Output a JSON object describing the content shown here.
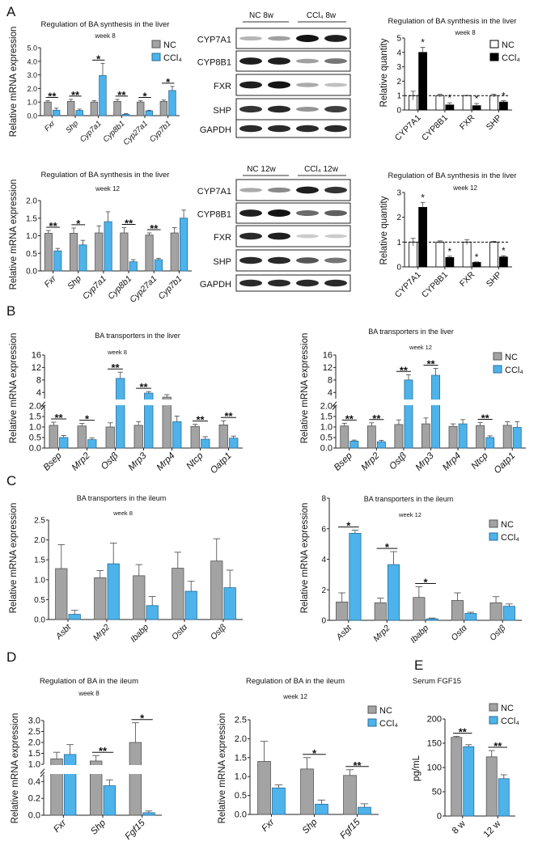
{
  "panel_letters": [
    "A",
    "B",
    "C",
    "D",
    "E"
  ],
  "legend": {
    "nc": "NC",
    "ccl4": "CCl₄"
  },
  "colors": {
    "nc_fill": "#a3a3a3",
    "nc_stroke": "#555555",
    "ccl4_fill": "#4db3ea",
    "ccl4_stroke": "#2a6c96",
    "quant_nc_fill": "#ffffff",
    "quant_ccl4_fill": "#000000"
  },
  "western_blots": [
    {
      "id": "wb_8w",
      "groups": [
        "NC 8w",
        "CCl₄ 8w"
      ],
      "rows": [
        {
          "label": "CYP7A1",
          "band_intensity": [
            0.25,
            0.35,
            1.0,
            0.95
          ]
        },
        {
          "label": "CYP8B1",
          "band_intensity": [
            0.95,
            0.95,
            0.35,
            0.55
          ]
        },
        {
          "label": "FXR",
          "band_intensity": [
            0.95,
            1.0,
            0.3,
            0.2
          ]
        },
        {
          "label": "SHP",
          "band_intensity": [
            0.85,
            0.9,
            0.4,
            0.8
          ]
        },
        {
          "label": "GAPDH",
          "band_intensity": [
            0.9,
            0.9,
            0.9,
            0.9
          ]
        }
      ]
    },
    {
      "id": "wb_12w",
      "groups": [
        "NC 12w",
        "CCl₄ 12w"
      ],
      "rows": [
        {
          "label": "CYP7A1",
          "band_intensity": [
            0.3,
            0.45,
            0.95,
            0.85
          ]
        },
        {
          "label": "CYP8B1",
          "band_intensity": [
            0.95,
            1.0,
            0.6,
            0.65
          ]
        },
        {
          "label": "FXR",
          "band_intensity": [
            0.9,
            0.95,
            0.15,
            0.15
          ]
        },
        {
          "label": "SHP",
          "band_intensity": [
            0.9,
            0.9,
            0.7,
            0.55
          ]
        },
        {
          "label": "GAPDH",
          "band_intensity": [
            0.9,
            0.9,
            0.9,
            0.9
          ]
        }
      ]
    }
  ],
  "chart_data": [
    {
      "id": "A_w8",
      "type": "bar",
      "title": "Regulation of BA synthesis in the liver",
      "subtitle": "week 8",
      "ylabel": "Relative mRNA expression",
      "ylim": [
        0,
        5
      ],
      "yticks": [
        "0.0",
        "1.0",
        "2.0",
        "3.0",
        "4.0",
        "5.0"
      ],
      "legend": "top-right",
      "categories": [
        "Fxr",
        "Shp",
        "Cyp7a1",
        "Cyp8b1",
        "Cyp27a1",
        "Cyp7b1"
      ],
      "series": [
        {
          "name": "NC",
          "values": [
            1.0,
            1.05,
            1.0,
            1.05,
            1.0,
            1.05
          ],
          "errors": [
            0.1,
            0.15,
            0.1,
            0.15,
            0.1,
            0.1
          ]
        },
        {
          "name": "CCl₄",
          "values": [
            0.4,
            0.38,
            2.95,
            0.1,
            0.35,
            1.85
          ],
          "errors": [
            0.15,
            0.1,
            0.9,
            0.05,
            0.05,
            0.3
          ]
        }
      ],
      "significance": [
        "**",
        "**",
        "*",
        "**",
        "*",
        "*"
      ]
    },
    {
      "id": "A_w12",
      "type": "bar",
      "title": "Regulation of BA synthesis in the  liver",
      "subtitle": "week 12",
      "ylabel": "Relative mRNA expression",
      "ylim": [
        0,
        2
      ],
      "yticks": [
        "0.0",
        "0.5",
        "1.0",
        "1.5",
        "2.0"
      ],
      "categories": [
        "Fxr",
        "Shp",
        "Cyp7a1",
        "Cyp8b1",
        "Cyp27a1",
        "Cyp7b1"
      ],
      "series": [
        {
          "name": "NC",
          "values": [
            1.07,
            1.07,
            1.08,
            1.08,
            1.02,
            1.08
          ],
          "errors": [
            0.08,
            0.15,
            0.2,
            0.15,
            0.06,
            0.15
          ]
        },
        {
          "name": "CCl₄",
          "values": [
            0.57,
            0.74,
            1.4,
            0.26,
            0.32,
            1.5
          ],
          "errors": [
            0.07,
            0.13,
            0.28,
            0.06,
            0.04,
            0.23
          ]
        }
      ],
      "significance": [
        "**",
        "*",
        "",
        "**",
        "**",
        ""
      ]
    },
    {
      "id": "Aq_w8",
      "type": "bar",
      "title": "Regulation of BA synthesis in the liver",
      "subtitle": "week 8",
      "ylabel": "Relative quantity",
      "ylim": [
        0,
        5
      ],
      "yticks": [
        "0",
        "1",
        "2",
        "3",
        "4",
        "5"
      ],
      "reference_line": 1,
      "legend": "top-right",
      "categories": [
        "CYP7A1",
        "CYP8B1",
        "FXR",
        "SHP"
      ],
      "series": [
        {
          "name": "NC",
          "values": [
            1,
            1,
            1,
            1
          ],
          "errors": [
            0.3,
            0.1,
            0.02,
            0.1
          ]
        },
        {
          "name": "CCl₄",
          "values": [
            4.0,
            0.35,
            0.3,
            0.55
          ],
          "errors": [
            0.35,
            0.15,
            0.15,
            0.1
          ]
        }
      ],
      "significance": [
        "*",
        "*",
        "*",
        "*"
      ]
    },
    {
      "id": "Aq_w12",
      "type": "bar",
      "title": "Regulation of BA synthesis in the liver",
      "subtitle": "week 12",
      "ylabel": "Relative quantity",
      "ylim": [
        0,
        3
      ],
      "yticks": [
        "0",
        "1",
        "2",
        "3"
      ],
      "reference_line": 1,
      "categories": [
        "CYP7A1",
        "CYP8B1",
        "FXR",
        "SHP"
      ],
      "series": [
        {
          "name": "NC",
          "values": [
            1,
            1,
            1,
            1
          ],
          "errors": [
            0.15,
            0.05,
            0.1,
            0.03
          ]
        },
        {
          "name": "CCl₄",
          "values": [
            2.4,
            0.38,
            0.18,
            0.4
          ],
          "errors": [
            0.2,
            0.05,
            0.02,
            0.05
          ]
        }
      ],
      "significance": [
        "*",
        "*",
        "*",
        "*"
      ]
    },
    {
      "id": "B_w8",
      "type": "bar",
      "title": "BA transporters in the liver",
      "subtitle": "week 8",
      "ylabel": "Relative mRNA expression",
      "y_break": [
        [
          0,
          2
        ],
        [
          2,
          16
        ]
      ],
      "yticks": [
        "0.0",
        "0.5",
        "1.0",
        "1.5",
        "2.0",
        "4",
        "8",
        "12",
        "16"
      ],
      "categories": [
        "Bsep",
        "Mrp2",
        "Ostβ",
        "Mrp3",
        "Mrp4",
        "Ntcp",
        "Oatp1"
      ],
      "series": [
        {
          "name": "NC",
          "values": [
            1.08,
            1.05,
            1.0,
            1.08,
            2.5,
            1.03,
            1.1
          ],
          "errors": [
            0.15,
            0.12,
            0.2,
            0.18,
            0.8,
            0.1,
            0.2
          ]
        },
        {
          "name": "CCl₄",
          "values": [
            0.5,
            0.4,
            8.5,
            3.8,
            1.25,
            0.42,
            0.47
          ],
          "errors": [
            0.1,
            0.08,
            2.0,
            0.5,
            0.27,
            0.12,
            0.1
          ]
        }
      ],
      "significance": [
        "**",
        "*",
        "**",
        "**",
        "",
        "**",
        "**"
      ]
    },
    {
      "id": "B_w12",
      "type": "bar",
      "title": "BA transporters in the liver",
      "subtitle": "week 12",
      "ylabel": "Relative mRNA expression",
      "y_break": [
        [
          0,
          2
        ],
        [
          2,
          16
        ]
      ],
      "yticks": [
        "0.0",
        "0.5",
        "1.0",
        "1.5",
        "2.0",
        "4",
        "8",
        "12",
        "16"
      ],
      "legend": "top-right",
      "categories": [
        "Bsep",
        "Mrp2",
        "Ostβ",
        "Mrp3",
        "Mrp4",
        "Ntcp",
        "Oatp1"
      ],
      "series": [
        {
          "name": "NC",
          "values": [
            1.05,
            1.05,
            1.12,
            1.15,
            1.03,
            1.07,
            1.08
          ],
          "errors": [
            0.13,
            0.15,
            0.22,
            0.28,
            0.12,
            0.14,
            0.17
          ]
        },
        {
          "name": "CCl₄",
          "values": [
            0.33,
            0.3,
            8.0,
            9.5,
            1.15,
            0.5,
            0.98
          ],
          "errors": [
            0.05,
            0.07,
            1.7,
            2.2,
            0.2,
            0.08,
            0.28
          ]
        }
      ],
      "significance": [
        "**",
        "**",
        "**",
        "**",
        "",
        "**",
        ""
      ]
    },
    {
      "id": "C_w8",
      "type": "bar",
      "title": "BA transporters in the ileum",
      "subtitle": "week 8",
      "ylabel": "Relative mRNA expression",
      "ylim": [
        0,
        2.5
      ],
      "yticks": [
        "0.0",
        "0.5",
        "1.0",
        "1.5",
        "2.0",
        "2.5"
      ],
      "categories": [
        "Asbt",
        "Mrp2",
        "Ibabp",
        "Ostα",
        "Ostβ"
      ],
      "series": [
        {
          "name": "NC",
          "values": [
            1.28,
            1.05,
            1.1,
            1.29,
            1.47
          ],
          "errors": [
            0.6,
            0.18,
            0.28,
            0.4,
            0.56
          ]
        },
        {
          "name": "CCl₄",
          "values": [
            0.13,
            1.4,
            0.35,
            0.71,
            0.8
          ],
          "errors": [
            0.1,
            0.52,
            0.23,
            0.25,
            0.44
          ]
        }
      ],
      "significance": [
        "",
        "",
        "",
        "",
        ""
      ]
    },
    {
      "id": "C_w12",
      "type": "bar",
      "title": "BA transporters in the ileum",
      "subtitle": "week 12",
      "ylabel": "Relative mRNA expression",
      "ylim": [
        0,
        8
      ],
      "yticks": [
        "0",
        "2",
        "4",
        "6",
        "8"
      ],
      "legend": "top-right",
      "categories": [
        "Asbt",
        "Mrp2",
        "Ibabp",
        "Ostα",
        "Ostβ"
      ],
      "series": [
        {
          "name": "NC",
          "values": [
            1.2,
            1.15,
            1.5,
            1.3,
            1.15
          ],
          "errors": [
            0.6,
            0.3,
            0.7,
            0.5,
            0.4
          ]
        },
        {
          "name": "CCl₄",
          "values": [
            5.7,
            3.65,
            0.1,
            0.45,
            0.92
          ],
          "errors": [
            0.2,
            0.85,
            0.05,
            0.08,
            0.15
          ]
        }
      ],
      "significance": [
        "*",
        "*",
        "*",
        "",
        ""
      ]
    },
    {
      "id": "D_w8",
      "type": "bar",
      "title": "Regulation of BA in the ileum",
      "subtitle": "week 8",
      "ylabel": "Relative mRNA expression",
      "y_break": [
        [
          0,
          0.48
        ],
        [
          1,
          3
        ]
      ],
      "yticks": [
        "0.0",
        "0.2",
        "0.4",
        "1.0",
        "1.5",
        "2.0",
        "2.5",
        "3.0"
      ],
      "categories": [
        "Fxr",
        "Shp",
        "Fgf15"
      ],
      "series": [
        {
          "name": "NC",
          "values": [
            1.25,
            1.15,
            2.0
          ],
          "errors": [
            0.3,
            0.25,
            0.9
          ]
        },
        {
          "name": "CCl₄",
          "values": [
            1.45,
            0.35,
            0.03
          ],
          "errors": [
            0.45,
            0.07,
            0.02
          ]
        }
      ],
      "significance": [
        "",
        "**",
        "*"
      ]
    },
    {
      "id": "D_w12",
      "type": "bar",
      "title": "Regulation of BA in the ileum",
      "subtitle": "week 12",
      "ylabel": "Relative mRNA expression",
      "ylim": [
        0,
        2.5
      ],
      "yticks": [
        "0.0",
        "0.5",
        "1.0",
        "1.5",
        "2.0",
        "2.5"
      ],
      "legend": "top-right",
      "categories": [
        "Fxr",
        "Shp",
        "Fgf15"
      ],
      "series": [
        {
          "name": "NC",
          "values": [
            1.4,
            1.2,
            1.03
          ],
          "errors": [
            0.53,
            0.3,
            0.15
          ]
        },
        {
          "name": "CCl₄",
          "values": [
            0.7,
            0.27,
            0.19
          ],
          "errors": [
            0.08,
            0.11,
            0.09
          ]
        }
      ],
      "significance": [
        "",
        "*",
        "**"
      ]
    },
    {
      "id": "E",
      "type": "bar",
      "title": "Serum FGF15",
      "subtitle": "",
      "ylabel": "pg/mL",
      "ylim": [
        0,
        200
      ],
      "yticks": [
        "0",
        "50",
        "100",
        "150",
        "200"
      ],
      "legend": "top-right",
      "categories": [
        "8 w",
        "12 w"
      ],
      "series": [
        {
          "name": "NC",
          "values": [
            162,
            122
          ],
          "errors": [
            2,
            13
          ]
        },
        {
          "name": "CCl₄",
          "values": [
            143,
            77
          ],
          "errors": [
            4,
            8
          ]
        }
      ],
      "significance": [
        "**",
        "**"
      ]
    }
  ]
}
